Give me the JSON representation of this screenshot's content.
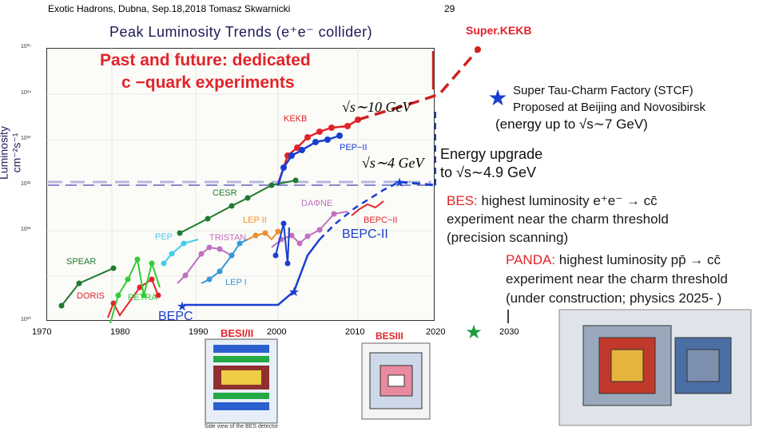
{
  "header": {
    "left": "Exotic Hadrons, Dubna, Sep.18,2018 Tomasz Skwarnicki",
    "page_number": "29"
  },
  "plot": {
    "title": "Peak Luminosity Trends (e⁺e⁻ collider)",
    "overlay_line1": "Past and future: dedicated",
    "overlay_line2": "c −quark experiments",
    "y_axis_label": "Luminosity  cm⁻²s⁻¹",
    "y_ticks": [
      "10³⁵",
      "10³⁴",
      "10³³",
      "10³²",
      "10³¹",
      "10³⁰"
    ],
    "x_ticks": [
      "1970",
      "1980",
      "1990",
      "2000",
      "2010",
      "2020",
      "2030"
    ],
    "collider_labels": {
      "kekb": "KEKB",
      "pep2": "PEP−II",
      "cesr": "CESR",
      "daphne": "DAΦNE",
      "lep2": "LEP II",
      "bepc2_small": "BEPC−II",
      "pep": "PEP",
      "tristan": "TRISTAN",
      "bepc2": "BEPC-II",
      "spear": "SPEAR",
      "lep1": "LEP I",
      "doris": "DORIS",
      "petra": "PETRA",
      "bepc": "BEPC"
    },
    "energy_label_1": "√s∼10 GeV",
    "energy_label_2": "√s∼4 GeV",
    "detector_labels": {
      "besi_ii": "BESI/II",
      "besiii": "BESIII"
    }
  },
  "annotations": {
    "superkekb": "Super.KEKB",
    "stcf_line1": "Super Tau-Charm Factory (STCF)",
    "stcf_line2": "Proposed at Beijing and Novosibirsk",
    "stcf_line3": "(energy up to √s∼7 GeV)",
    "upgrade_line1": "Energy upgrade",
    "upgrade_line2": "to √s∼4.9 GeV",
    "bes_name": "BES:",
    "bes_line1": " highest luminosity e⁺e⁻ → cc̄",
    "bes_line2": "experiment near the charm threshold",
    "bes_line3": "(precision scanning)",
    "panda_name": "PANDA:",
    "panda_line1": " highest luminosity pp̄ → cc̄",
    "panda_line2": "experiment near the charm threshold",
    "panda_line3": "(under construction; physics 2025- )"
  },
  "colors": {
    "red": "#e0242a",
    "blue": "#1a3fcf",
    "green": "#1e7a2e",
    "purple": "#c070c0",
    "navy": "#1a1a55"
  }
}
